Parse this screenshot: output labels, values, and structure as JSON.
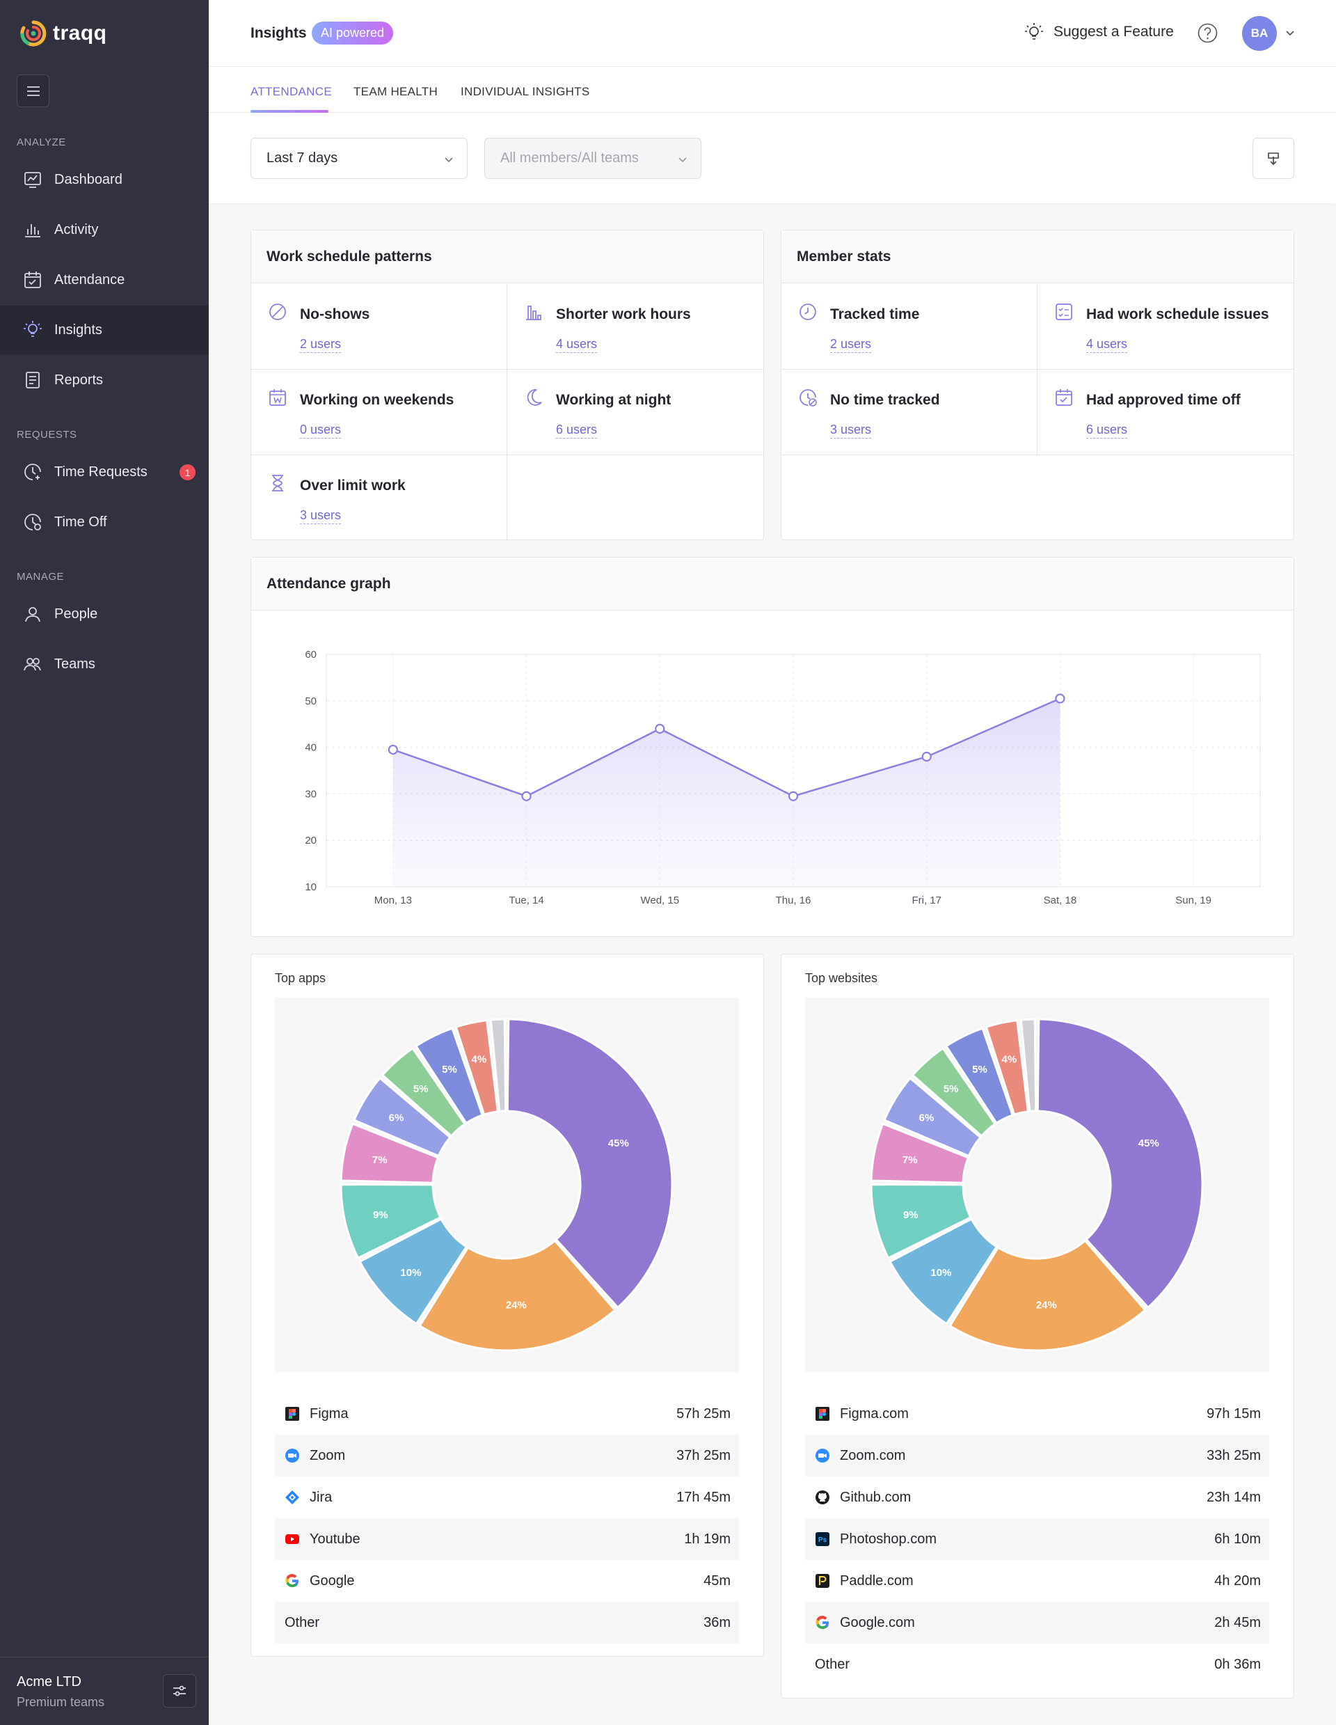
{
  "brand": {
    "name": "traqq"
  },
  "sidebar": {
    "sections": [
      {
        "label": "ANALYZE",
        "items": [
          {
            "label": "Dashboard",
            "icon": "dashboard-icon"
          },
          {
            "label": "Activity",
            "icon": "bar-chart-icon"
          },
          {
            "label": "Attendance",
            "icon": "calendar-check-icon"
          },
          {
            "label": "Insights",
            "icon": "lightbulb-icon",
            "active": true
          },
          {
            "label": "Reports",
            "icon": "report-icon"
          }
        ]
      },
      {
        "label": "REQUESTS",
        "items": [
          {
            "label": "Time Requests",
            "icon": "clock-plus-icon",
            "badge": "1"
          },
          {
            "label": "Time Off",
            "icon": "clock-off-icon"
          }
        ]
      },
      {
        "label": "MANAGE",
        "items": [
          {
            "label": "People",
            "icon": "person-icon"
          },
          {
            "label": "Teams",
            "icon": "group-icon"
          }
        ]
      }
    ],
    "company": {
      "name": "Acme LTD",
      "plan": "Premium teams"
    }
  },
  "header": {
    "title": "Insights",
    "badge": "AI powered",
    "suggest": "Suggest a Feature",
    "avatar": "BA"
  },
  "tabs": [
    {
      "label": "ATTENDANCE",
      "active": true
    },
    {
      "label": "TEAM HEALTH"
    },
    {
      "label": "INDIVIDUAL INSIGHTS"
    }
  ],
  "filters": {
    "period": "Last 7 days",
    "members_placeholder": "All members/All teams"
  },
  "work_schedule": {
    "title": "Work schedule patterns",
    "stats": [
      {
        "label": "No-shows",
        "value": "2 users",
        "icon": "ban-icon"
      },
      {
        "label": "Shorter work hours",
        "value": "4 users",
        "icon": "short-bars-icon"
      },
      {
        "label": "Working on weekends",
        "value": "0 users",
        "icon": "calendar-weekend-icon"
      },
      {
        "label": "Working at night",
        "value": "6 users",
        "icon": "moon-icon"
      },
      {
        "label": "Over limit work",
        "value": "3 users",
        "icon": "hourglass-icon"
      }
    ]
  },
  "member_stats": {
    "title": "Member stats",
    "stats": [
      {
        "label": "Tracked time",
        "value": "2 users",
        "icon": "clock-icon"
      },
      {
        "label": "Had work schedule issues",
        "value": "4 users",
        "icon": "checklist-icon"
      },
      {
        "label": "No time tracked",
        "value": "3 users",
        "icon": "clock-x-icon"
      },
      {
        "label": "Had approved time off",
        "value": "6 users",
        "icon": "calendar-approved-icon"
      }
    ]
  },
  "attendance": {
    "title": "Attendance graph"
  },
  "top_apps": {
    "title": "Top apps",
    "items": [
      {
        "name": "Figma",
        "time": "57h 25m",
        "icon": "figma-icon"
      },
      {
        "name": "Zoom",
        "time": "37h 25m",
        "icon": "zoom-icon"
      },
      {
        "name": "Jira",
        "time": "17h 45m",
        "icon": "jira-icon"
      },
      {
        "name": "Youtube",
        "time": "1h 19m",
        "icon": "youtube-icon"
      },
      {
        "name": "Google",
        "time": "45m",
        "icon": "google-icon"
      },
      {
        "name": "Other",
        "time": "36m",
        "icon": ""
      }
    ]
  },
  "top_websites": {
    "title": "Top websites",
    "items": [
      {
        "name": "Figma.com",
        "time": "97h 15m",
        "icon": "figma-icon"
      },
      {
        "name": "Zoom.com",
        "time": "33h 25m",
        "icon": "zoom-icon"
      },
      {
        "name": "Github.com",
        "time": "23h 14m",
        "icon": "github-icon"
      },
      {
        "name": "Photoshop.com",
        "time": "6h 10m",
        "icon": "photoshop-icon"
      },
      {
        "name": "Paddle.com",
        "time": "4h 20m",
        "icon": "paddle-icon"
      },
      {
        "name": "Google.com",
        "time": "2h 45m",
        "icon": "google-icon"
      },
      {
        "name": "Other",
        "time": "0h 36m",
        "icon": ""
      }
    ]
  },
  "colors": {
    "accent": "#7d6bd8",
    "sidebar_bg": "#32313f",
    "line": "#8e7ee0",
    "slices": [
      "#9077d2",
      "#f0a75c",
      "#70b6dc",
      "#6fcfc0",
      "#e38fc7",
      "#949fe6",
      "#8dcd97",
      "#7c8bdb",
      "#ea8a7d",
      "#cfcfd6"
    ]
  },
  "chart_data": [
    {
      "type": "line",
      "title": "",
      "x": [
        "Mon, 13",
        "Tue, 14",
        "Wed, 15",
        "Thu, 16",
        "Fri, 17",
        "Sat, 18",
        "Sun, 19"
      ],
      "values": [
        39.5,
        29.5,
        44,
        29.5,
        38,
        50.5,
        null
      ],
      "ylim": [
        10,
        60
      ],
      "yticks": [
        60,
        50,
        40,
        30,
        20,
        10
      ],
      "grid": true
    },
    {
      "type": "pie",
      "title": "Top apps",
      "slices": [
        45,
        24,
        10,
        9,
        7,
        6,
        5,
        5,
        4,
        2
      ],
      "labels": [
        "45%",
        "24%",
        "10%",
        "9%",
        "7%",
        "6%",
        "5%",
        "5%",
        "4%",
        ""
      ]
    },
    {
      "type": "pie",
      "title": "Top websites",
      "slices": [
        45,
        24,
        10,
        9,
        7,
        6,
        5,
        5,
        4,
        2
      ],
      "labels": [
        "45%",
        "24%",
        "10%",
        "9%",
        "7%",
        "6%",
        "5%",
        "5%",
        "4%",
        ""
      ]
    }
  ]
}
